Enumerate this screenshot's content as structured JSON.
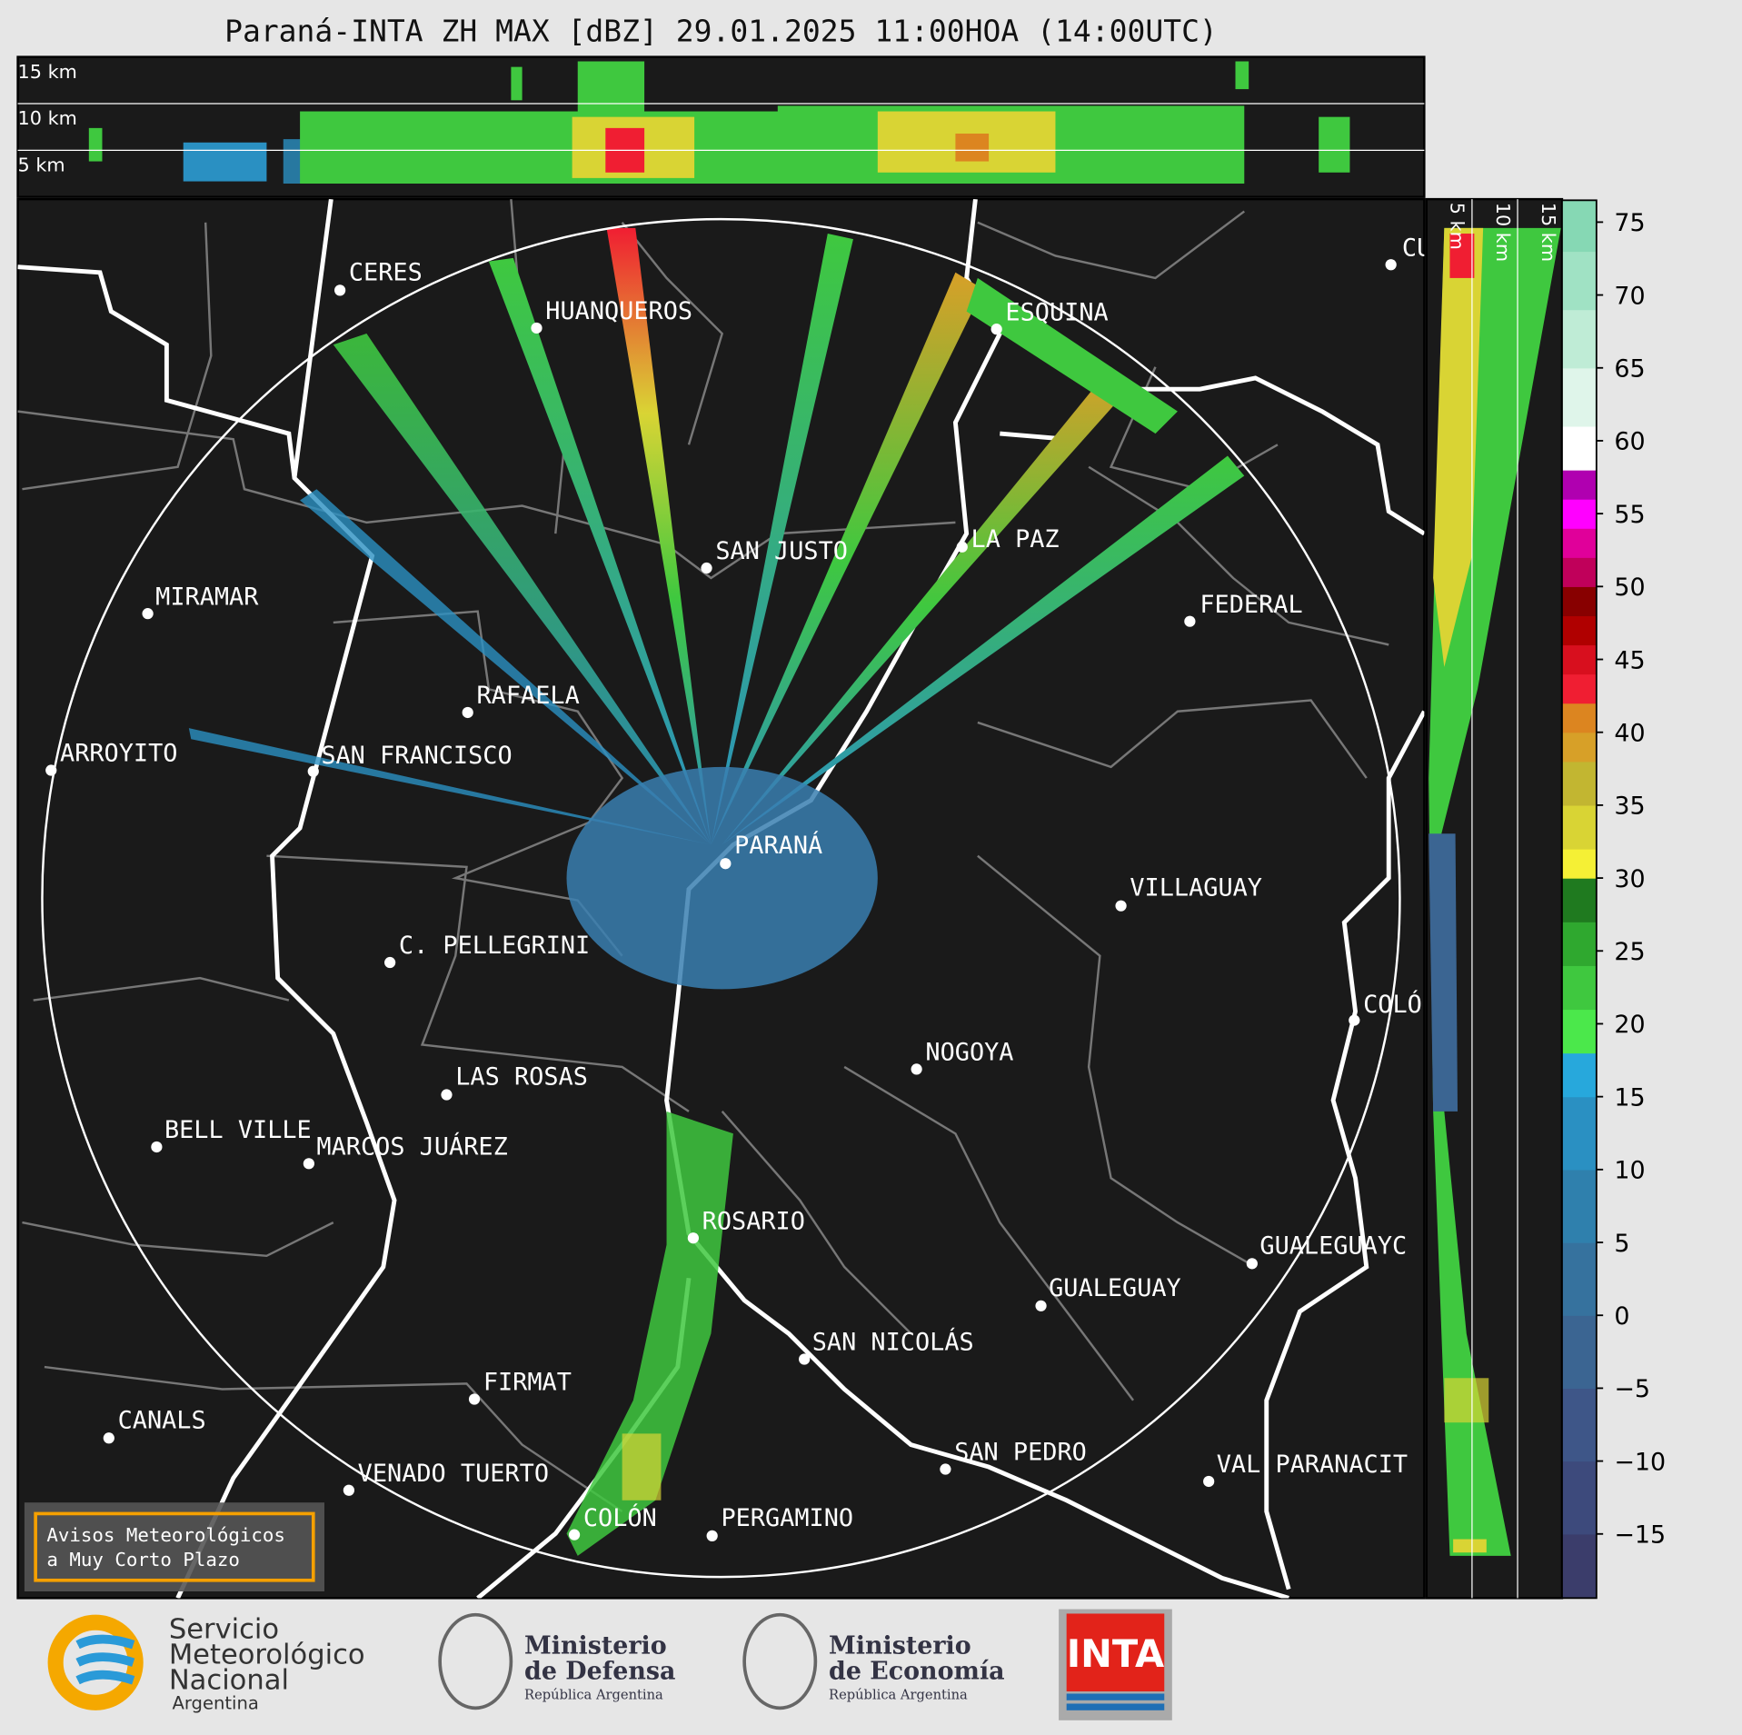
{
  "title": "Paraná-INTA ZH MAX [dBZ] 29.01.2025 11:00HOA (14:00UTC)",
  "altitude_panel": {
    "labels": [
      "15 km",
      "10 km",
      "5 km"
    ]
  },
  "side_panel": {
    "labels": [
      "5 km",
      "10 km",
      "15 km"
    ]
  },
  "cities": [
    "CERES",
    "HUANQUEROS",
    "ESQUINA",
    "CU",
    "SAN JUSTO",
    "LA PAZ",
    "FEDERAL",
    "MIRAMAR",
    "RAFAELA",
    "ARROYITO",
    "SAN FRANCISCO",
    "PARANÁ",
    "VILLAGUAY",
    "C. PELLEGRINI",
    "COLÓ",
    "NOGOYA",
    "LAS ROSAS",
    "BELL VILLE",
    "MARCOS JUÁREZ",
    "ROSARIO",
    "GUALEGUAYC",
    "GUALEGUAY",
    "SAN NICOLÁS",
    "FIRMAT",
    "CANALS",
    "SAN PEDRO",
    "VAL PARANACIT",
    "VENADO TUERTO",
    "COLÓN",
    "PERGAMINO"
  ],
  "colorbar": {
    "lim": [
      -19.4,
      76.5
    ],
    "ticks": [
      75,
      70,
      65,
      60,
      55,
      50,
      45,
      40,
      35,
      30,
      25,
      20,
      15,
      10,
      5,
      0,
      {
        "value": -5,
        "label": "−5"
      },
      {
        "value": -10,
        "label": "−10"
      },
      {
        "value": -15,
        "label": "−15"
      }
    ],
    "bands": [
      {
        "min": -19.4,
        "max": -15,
        "color": "#3b3d6b"
      },
      {
        "min": -15,
        "max": -10,
        "color": "#3d4a7c"
      },
      {
        "min": -10,
        "max": -5,
        "color": "#3e5688"
      },
      {
        "min": -5,
        "max": 0,
        "color": "#3b6592"
      },
      {
        "min": 0,
        "max": 5,
        "color": "#36729e"
      },
      {
        "min": 5,
        "max": 10,
        "color": "#2f80ad"
      },
      {
        "min": 10,
        "max": 15,
        "color": "#2a90c2"
      },
      {
        "min": 15,
        "max": 18,
        "color": "#27a8dc"
      },
      {
        "min": 18,
        "max": 21,
        "color": "#4be84b"
      },
      {
        "min": 21,
        "max": 24,
        "color": "#3fc83f"
      },
      {
        "min": 24,
        "max": 27,
        "color": "#2fa82f"
      },
      {
        "min": 27,
        "max": 30,
        "color": "#1f7a1f"
      },
      {
        "min": 30,
        "max": 32,
        "color": "#f5f035"
      },
      {
        "min": 32,
        "max": 35,
        "color": "#d9d434"
      },
      {
        "min": 35,
        "max": 38,
        "color": "#c2b631"
      },
      {
        "min": 38,
        "max": 40,
        "color": "#d7a028"
      },
      {
        "min": 40,
        "max": 42,
        "color": "#dc8520"
      },
      {
        "min": 42,
        "max": 44,
        "color": "#f01e32"
      },
      {
        "min": 44,
        "max": 46,
        "color": "#d80f1e"
      },
      {
        "min": 46,
        "max": 48,
        "color": "#b00000"
      },
      {
        "min": 48,
        "max": 50,
        "color": "#880000"
      },
      {
        "min": 50,
        "max": 52,
        "color": "#c0005a"
      },
      {
        "min": 52,
        "max": 54,
        "color": "#e0009a"
      },
      {
        "min": 54,
        "max": 56,
        "color": "#ff00ff"
      },
      {
        "min": 56,
        "max": 58,
        "color": "#b000b0"
      },
      {
        "min": 58,
        "max": 61,
        "color": "#ffffff"
      },
      {
        "min": 61,
        "max": 65,
        "color": "#dff5ea"
      },
      {
        "min": 65,
        "max": 69,
        "color": "#bfecd6"
      },
      {
        "min": 69,
        "max": 73,
        "color": "#a0e2c4"
      },
      {
        "min": 73,
        "max": 76.5,
        "color": "#86d8b4"
      }
    ]
  },
  "notice": {
    "lines": [
      "Avisos Meteorológicos",
      "a Muy Corto Plazo"
    ]
  },
  "logos": {
    "smn": [
      "Servicio",
      "Meteorológico",
      "Nacional",
      "Argentina"
    ],
    "defensa": [
      "Ministerio",
      "de Defensa",
      "República Argentina"
    ],
    "economia": [
      "Ministerio",
      "de Economía",
      "República Argentina"
    ],
    "inta": "INTA"
  }
}
